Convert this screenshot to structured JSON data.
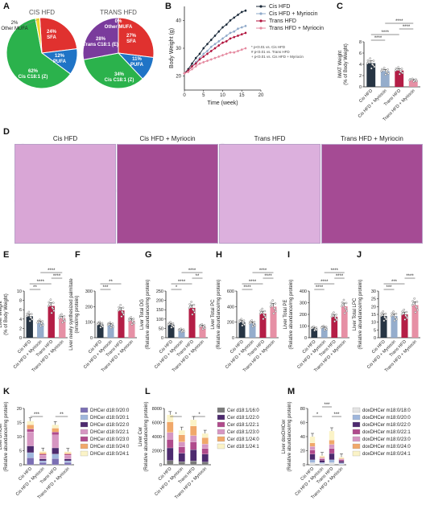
{
  "panel_letters": [
    "A",
    "B",
    "C",
    "D",
    "E",
    "F",
    "G",
    "H",
    "I",
    "J",
    "K",
    "L",
    "M"
  ],
  "panelA": {
    "pies": [
      {
        "title": "CIS HFD",
        "slices": [
          {
            "label": "24% SFA",
            "value": 24,
            "color": "#e0312f"
          },
          {
            "label": "12% PUFA",
            "value": 12,
            "color": "#1f74c6"
          },
          {
            "label": "62% Cis C18:1 (Z)",
            "value": 62,
            "color": "#2bb24c"
          },
          {
            "label": "2% Other MUFA",
            "value": 2,
            "color": "#f2d52e"
          }
        ]
      },
      {
        "title": "TRANS HFD",
        "slices": [
          {
            "label": "27% SFA",
            "value": 27,
            "color": "#e0312f"
          },
          {
            "label": "11% PUFA",
            "value": 11,
            "color": "#1f74c6"
          },
          {
            "label": "34% Cis C18:1 (Z)",
            "value": 34,
            "color": "#2bb24c"
          },
          {
            "label": "28% Trans C18:1 (E)",
            "value": 28,
            "color": "#7a3b9c"
          },
          {
            "label": "0% Other MUFA",
            "value": 0,
            "color": "#f2d52e"
          }
        ]
      }
    ]
  },
  "panelB": {
    "legend": [
      "Cis HFD",
      "Cis HFD + Myriocin",
      "Trans HFD",
      "Trans HFD + Myriocin"
    ],
    "ylabel": "Body Weight (g)",
    "xlabel": "Time (week)",
    "yticks": [
      "20",
      "30",
      "40"
    ],
    "xticks": [
      "0",
      "5",
      "10",
      "15",
      "20"
    ],
    "notes": [
      "* p<0.01 vs. Cis HFD",
      "# p<0.01 vs. Trans HFD",
      "+ p<0.01 vs. Cis HFD + Myriocin"
    ]
  },
  "chart_data": [
    {
      "panel": "B",
      "type": "line",
      "x": [
        0,
        1,
        2,
        3,
        4,
        5,
        6,
        7,
        8,
        9,
        10,
        11,
        12,
        13,
        14,
        15,
        16
      ],
      "xlabel": "Time (week)",
      "ylabel": "Body Weight (g)",
      "ylim": [
        15,
        45
      ],
      "xlim": [
        0,
        20
      ],
      "series": [
        {
          "name": "Cis HFD",
          "color": "#1b2a3a",
          "values": [
            21,
            22.5,
            24.5,
            26.5,
            28,
            30,
            31.5,
            33,
            34.5,
            36,
            37.5,
            38.5,
            40,
            41,
            42,
            43,
            43.5
          ]
        },
        {
          "name": "Cis HFD + Myriocin",
          "color": "#8fa9c9",
          "values": [
            21,
            22,
            23.5,
            25,
            26.5,
            28,
            29,
            30.5,
            31.5,
            32.5,
            33.5,
            34.5,
            35.5,
            36,
            37,
            37.5,
            38
          ]
        },
        {
          "name": "Trans HFD",
          "color": "#b0123c",
          "values": [
            21,
            22,
            23.5,
            24.5,
            26,
            27,
            28,
            29,
            30,
            31,
            32,
            32.5,
            33.5,
            34,
            34.5,
            35,
            35.5
          ]
        },
        {
          "name": "Trans HFD + Myriocin",
          "color": "#e58aa0",
          "values": [
            21,
            21.5,
            22.5,
            23.5,
            24.5,
            25,
            25.5,
            26,
            26.5,
            27,
            27.5,
            28,
            28.5,
            28.5,
            29,
            29.5,
            30
          ]
        }
      ]
    },
    {
      "panel": "C",
      "type": "bar",
      "categories": [
        "Cis HFD",
        "Cis HFD + Myriocin",
        "Trans HFD",
        "Trans HFD + Myriocin"
      ],
      "values": [
        4.2,
        2.8,
        2.9,
        1.2
      ],
      "ylabel": "iWAT Weight (% of Body Weight)",
      "ylim": [
        0,
        8
      ],
      "yticks": [
        "0",
        "2",
        "4",
        "6",
        "8"
      ]
    },
    {
      "panel": "E",
      "type": "bar",
      "categories": [
        "Cis HFD",
        "Cis HFD + Myriocin",
        "Trans HFD",
        "Trans HFD + Myriocin"
      ],
      "values": [
        4.6,
        3.2,
        6.8,
        4.2
      ],
      "ylabel": "Liver Weight (% of Body Weight)",
      "ylim": [
        0,
        10
      ],
      "yticks": [
        "0",
        "2",
        "4",
        "6",
        "8",
        "10"
      ]
    },
    {
      "panel": "F",
      "type": "bar",
      "categories": [
        "Cis HFD",
        "Cis HFD + Myriocin",
        "Trans HFD",
        "Trans HFD + Myriocin"
      ],
      "values": [
        85,
        82,
        175,
        110
      ],
      "ylabel": "Liver newly synthesized palmitate (nmol/mg protein)",
      "ylim": [
        0,
        300
      ],
      "yticks": [
        "0",
        "100",
        "200",
        "300"
      ]
    },
    {
      "panel": "G",
      "type": "bar",
      "categories": [
        "Cis HFD",
        "Cis HFD + Myriocin",
        "Trans HFD",
        "Trans HFD + Myriocin"
      ],
      "values": [
        70,
        40,
        160,
        60
      ],
      "ylabel": "Liver Total DG (Relative abundance/mg protein)",
      "ylim": [
        0,
        250
      ],
      "yticks": [
        "0",
        "50",
        "100",
        "150",
        "200",
        "250"
      ]
    },
    {
      "panel": "H",
      "type": "bar",
      "categories": [
        "Cis HFD",
        "Cis HFD + Myriocin",
        "Trans HFD",
        "Trans HFD + Myriocin"
      ],
      "values": [
        200,
        185,
        310,
        400
      ],
      "ylabel": "Liver Total PC (Relative abundance/mg protein)",
      "ylim": [
        0,
        600
      ],
      "yticks": [
        "0",
        "200",
        "400",
        "600"
      ]
    },
    {
      "panel": "I",
      "type": "bar",
      "categories": [
        "Cis HFD",
        "Cis HFD + Myriocin",
        "Trans HFD",
        "Trans HFD + Myriocin"
      ],
      "values": [
        80,
        85,
        180,
        270
      ],
      "ylabel": "Liver Total PE (Relative abundance/mg protein)",
      "ylim": [
        0,
        400
      ],
      "yticks": [
        "0",
        "100",
        "200",
        "300",
        "400"
      ]
    },
    {
      "panel": "J",
      "type": "bar",
      "categories": [
        "Cis HFD",
        "Cis HFD + Myriocin",
        "Trans HFD",
        "Trans HFD + Myriocin"
      ],
      "values": [
        14,
        14,
        15,
        21
      ],
      "ylabel": "Liver Total LPC (Relative abundance/mg protein)",
      "ylim": [
        0,
        30
      ],
      "yticks": [
        "0",
        "5",
        "10",
        "15",
        "20",
        "25",
        "30"
      ]
    },
    {
      "panel": "K",
      "type": "bar",
      "stacked": true,
      "categories": [
        "Cis HFD",
        "Cis HFD + Myriocin",
        "Trans HFD",
        "Trans HFD + Myriocin"
      ],
      "ylabel": "Liver DHCer (Relative abundance/mg protein)",
      "ylim": [
        0,
        20
      ],
      "yticks": [
        "0",
        "5",
        "10",
        "15",
        "20"
      ],
      "series": [
        {
          "name": "DHCer d18:0/20:0",
          "color": "#7b6fb4",
          "values": [
            2.5,
            0.8,
            2.2,
            0.8
          ]
        },
        {
          "name": "DHCer d18:0/20:1",
          "color": "#9fb6dc",
          "values": [
            1.8,
            0.6,
            1.6,
            0.6
          ]
        },
        {
          "name": "DHCer d18:0/22:0",
          "color": "#4d2a6e",
          "values": [
            2.4,
            0.7,
            2.2,
            0.7
          ]
        },
        {
          "name": "DHCer d18:0/22:1",
          "color": "#d696c2",
          "values": [
            5.0,
            1.3,
            4.6,
            1.3
          ]
        },
        {
          "name": "DHCer d18:0/23:0",
          "color": "#b04b8c",
          "values": [
            1.0,
            0.4,
            1.0,
            0.4
          ]
        },
        {
          "name": "DHCer d18:0/24:0",
          "color": "#f0a86a",
          "values": [
            1.5,
            0.5,
            1.4,
            0.4
          ]
        },
        {
          "name": "DHCer d18:0/24:1",
          "color": "#fbf3c7",
          "values": [
            1.3,
            0.5,
            1.2,
            0.5
          ]
        }
      ]
    },
    {
      "panel": "L",
      "type": "bar",
      "stacked": true,
      "categories": [
        "Cis HFD",
        "Cis HFD + Myriocin",
        "Trans HFD",
        "Trans HFD + Myriocin"
      ],
      "ylabel": "Liver Cer (Relative abundance/mg protein)",
      "ylim": [
        0,
        8000
      ],
      "yticks": [
        "0",
        "2000",
        "4000",
        "6000",
        "8000"
      ],
      "series": [
        {
          "name": "Cer d18:1/16:0",
          "color": "#7a7a7a",
          "values": [
            600,
            450,
            550,
            400
          ]
        },
        {
          "name": "Cer d18:1/22:0",
          "color": "#4d2a6e",
          "values": [
            1800,
            1200,
            1600,
            1100
          ]
        },
        {
          "name": "Cer d18:1/22:1",
          "color": "#b04b8c",
          "values": [
            1200,
            900,
            1100,
            800
          ]
        },
        {
          "name": "Cer d18:1/23:0",
          "color": "#d696c2",
          "values": [
            1000,
            700,
            900,
            650
          ]
        },
        {
          "name": "Cer d18:1/24:0",
          "color": "#f0a86a",
          "values": [
            1500,
            1000,
            1350,
            900
          ]
        },
        {
          "name": "Cer d18:1/24:1",
          "color": "#fbf3c7",
          "values": [
            1000,
            650,
            900,
            600
          ]
        }
      ]
    },
    {
      "panel": "M",
      "type": "bar",
      "stacked": true,
      "categories": [
        "Cis HFD",
        "Cis HFD + Myriocin",
        "Trans HFD",
        "Trans HFD + Myriocin"
      ],
      "ylabel": "Liver doxDHCer (Relative abundance/mg protein)",
      "ylim": [
        0,
        80
      ],
      "yticks": [
        "0",
        "20",
        "40",
        "60",
        "80"
      ],
      "series": [
        {
          "name": "doxDHCer m18:0/18:0",
          "color": "#e3e3e3",
          "values": [
            3,
            1.5,
            3,
            1.2
          ]
        },
        {
          "name": "doxDHCer m18:0/20:0",
          "color": "#9fb6dc",
          "values": [
            4,
            1.8,
            4,
            1.5
          ]
        },
        {
          "name": "doxDHCer m18:0/22:0",
          "color": "#4d2a6e",
          "values": [
            8,
            3,
            9,
            2.5
          ]
        },
        {
          "name": "doxDHCer m18:0/22:1",
          "color": "#b04b8c",
          "values": [
            6,
            2,
            7,
            1.8
          ]
        },
        {
          "name": "doxDHCer m18:0/23:0",
          "color": "#d696c2",
          "values": [
            5,
            1.5,
            6,
            1.3
          ]
        },
        {
          "name": "doxDHCer m18:0/24:0",
          "color": "#f0a86a",
          "values": [
            5,
            1.2,
            6,
            1.0
          ]
        },
        {
          "name": "doxDHCer m18:0/24:1",
          "color": "#fbf3c7",
          "values": [
            9,
            2,
            13,
            1.7
          ]
        }
      ]
    }
  ],
  "groups": {
    "names": [
      "Cis HFD",
      "Cis HFD + Myriocin",
      "Trans HFD",
      "Trans HFD + Myriocin"
    ],
    "colors": [
      "#1b2a3a",
      "#8fa9c9",
      "#b0123c",
      "#e58aa0"
    ]
  },
  "sig": {
    "C": [
      "****",
      "****",
      "****",
      "****"
    ],
    "E": [
      "**",
      "****",
      "****",
      "****"
    ],
    "F": [
      "***",
      "**"
    ],
    "G": [
      "*",
      "****",
      "**",
      "****"
    ],
    "H": [
      "****",
      "****",
      "****",
      "****"
    ],
    "I": [
      "****",
      "****",
      "****",
      "****"
    ],
    "J": [
      "***",
      "***",
      "****"
    ],
    "K": [
      "***",
      "**"
    ],
    "L": [
      "*",
      "*"
    ],
    "M": [
      "*",
      "***",
      "***"
    ]
  },
  "panelD": {
    "titles": [
      "Cis HFD",
      "Cis HFD + Myriocin",
      "Trans HFD",
      "Trans HFD + Myriocin"
    ]
  }
}
